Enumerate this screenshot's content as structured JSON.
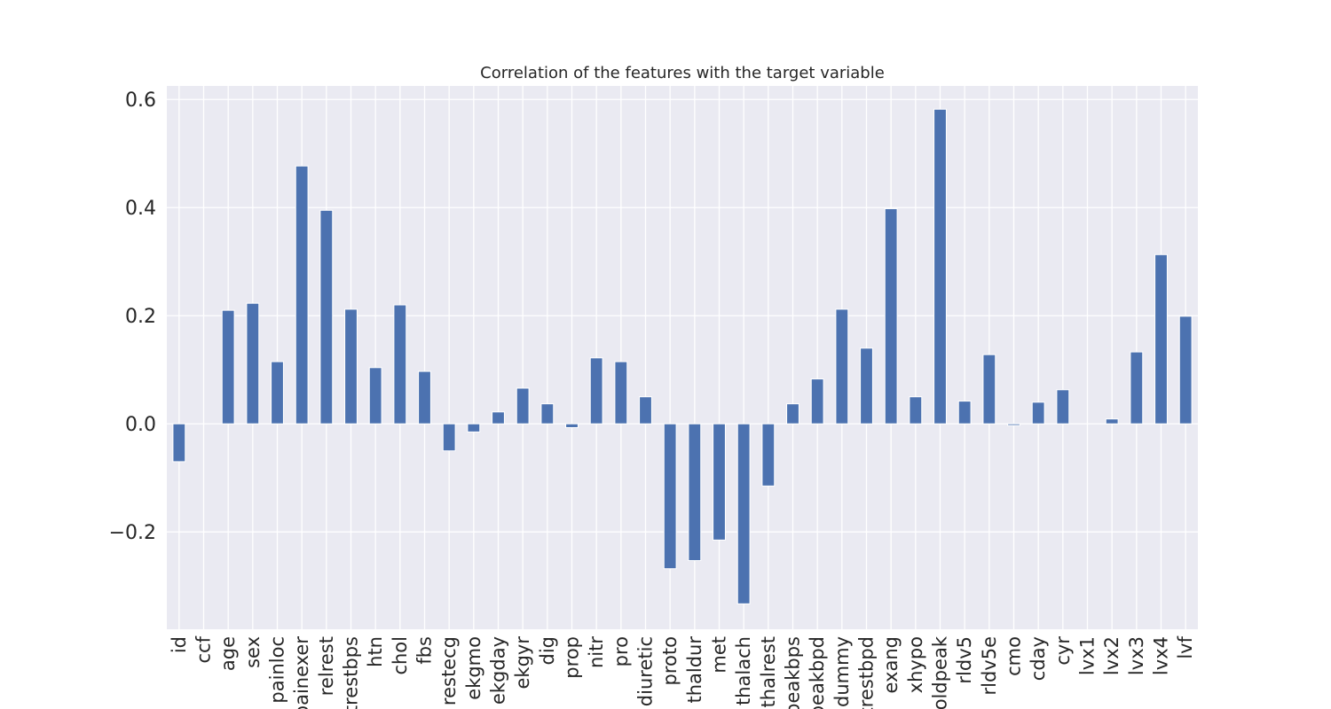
{
  "chart_data": {
    "type": "bar",
    "title": "Correlation of the features with the target variable",
    "xlabel": "",
    "ylabel": "",
    "ylim": [
      -0.38,
      0.625
    ],
    "yticks": [
      -0.2,
      0.0,
      0.2,
      0.4,
      0.6
    ],
    "ytick_labels": [
      "−0.2",
      "0.0",
      "0.2",
      "0.4",
      "0.6"
    ],
    "grid": true,
    "bar_color": "#4c72b0",
    "background_color": "#eaeaf2",
    "categories": [
      "id",
      "ccf",
      "age",
      "sex",
      "painloc",
      "painexer",
      "relrest",
      "trestbps",
      "htn",
      "chol",
      "fbs",
      "restecg",
      "ekgmo",
      "ekgday",
      "ekgyr",
      "dig",
      "prop",
      "nitr",
      "pro",
      "diuretic",
      "proto",
      "thaldur",
      "met",
      "thalach",
      "thalrest",
      "tpeakbps",
      "tpeakbpd",
      "dummy",
      "trestbpd",
      "exang",
      "xhypo",
      "oldpeak",
      "rldv5",
      "rldv5e",
      "cmo",
      "cday",
      "cyr",
      "lvx1",
      "lvx2",
      "lvx3",
      "lvx4",
      "lvf"
    ],
    "values": [
      -0.07,
      0.0,
      0.21,
      0.223,
      0.115,
      0.477,
      0.395,
      0.212,
      0.104,
      0.22,
      0.097,
      -0.05,
      -0.015,
      0.022,
      0.066,
      0.037,
      -0.007,
      0.122,
      0.115,
      0.05,
      -0.268,
      -0.253,
      -0.215,
      -0.333,
      -0.115,
      0.037,
      0.083,
      0.212,
      0.14,
      0.398,
      0.05,
      0.582,
      0.042,
      0.128,
      -0.003,
      0.04,
      0.063,
      0.0,
      0.009,
      0.133,
      0.313,
      0.199
    ]
  }
}
